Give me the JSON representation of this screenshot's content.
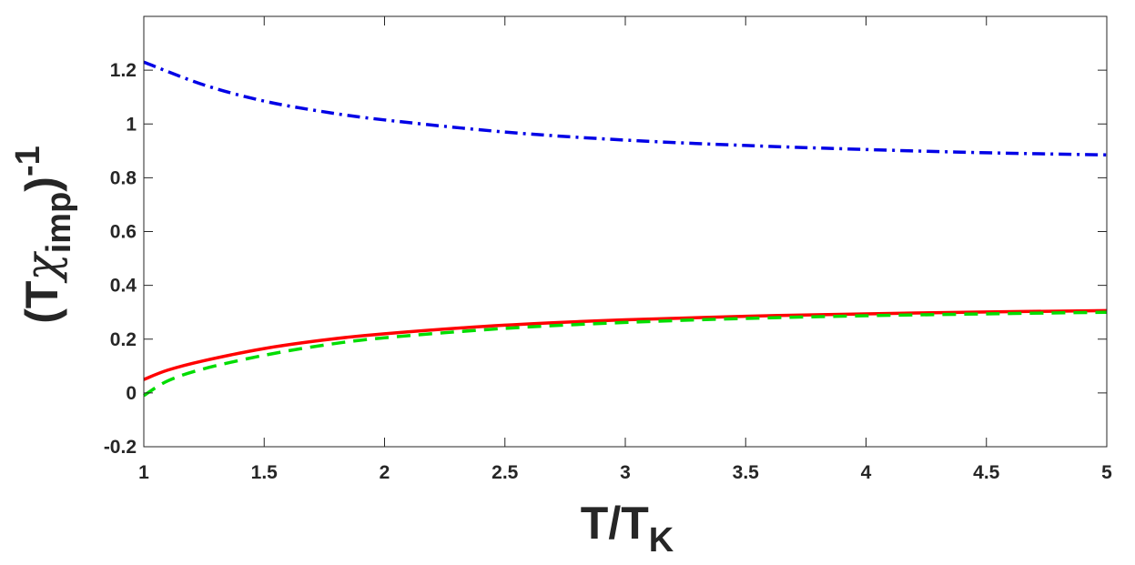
{
  "chart_data": {
    "type": "line",
    "title": "",
    "xlabel": {
      "main": "T/T",
      "sub": "K"
    },
    "ylabel": {
      "open": "(T",
      "chi": "χ",
      "sub": "imp",
      "close": ")",
      "sup": "-1"
    },
    "xlim": [
      1,
      5
    ],
    "ylim": [
      -0.2,
      1.4
    ],
    "xticks": [
      1,
      1.5,
      2,
      2.5,
      3,
      3.5,
      4,
      4.5,
      5
    ],
    "xtick_labels": [
      "1",
      "1.5",
      "2",
      "2.5",
      "3",
      "3.5",
      "4",
      "4.5",
      "5"
    ],
    "yticks": [
      -0.2,
      0,
      0.2,
      0.4,
      0.6,
      0.8,
      1,
      1.2
    ],
    "ytick_labels": [
      "-0.2",
      "0",
      "0.2",
      "0.4",
      "0.6",
      "0.8",
      "1",
      "1.2"
    ],
    "grid": false,
    "legend": "none",
    "series": [
      {
        "color": "#0000e6",
        "style": "dash-dot",
        "x": [
          1.0,
          1.25,
          1.5,
          1.75,
          2.0,
          2.5,
          3.0,
          3.5,
          4.0,
          4.5,
          5.0
        ],
        "y": [
          1.23,
          1.145,
          1.085,
          1.045,
          1.015,
          0.97,
          0.94,
          0.92,
          0.905,
          0.893,
          0.885
        ]
      },
      {
        "color": "#ff0000",
        "style": "solid",
        "x": [
          1.0,
          1.1,
          1.25,
          1.5,
          1.75,
          2.0,
          2.5,
          3.0,
          3.5,
          4.0,
          4.5,
          5.0
        ],
        "y": [
          0.05,
          0.085,
          0.12,
          0.165,
          0.197,
          0.22,
          0.252,
          0.272,
          0.285,
          0.294,
          0.301,
          0.306
        ]
      },
      {
        "color": "#00dd00",
        "style": "dashed",
        "x": [
          1.0,
          1.1,
          1.25,
          1.5,
          1.75,
          2.0,
          2.5,
          3.0,
          3.5,
          4.0,
          4.5,
          5.0
        ],
        "y": [
          -0.01,
          0.045,
          0.09,
          0.14,
          0.178,
          0.205,
          0.24,
          0.262,
          0.277,
          0.287,
          0.294,
          0.3
        ]
      }
    ]
  }
}
